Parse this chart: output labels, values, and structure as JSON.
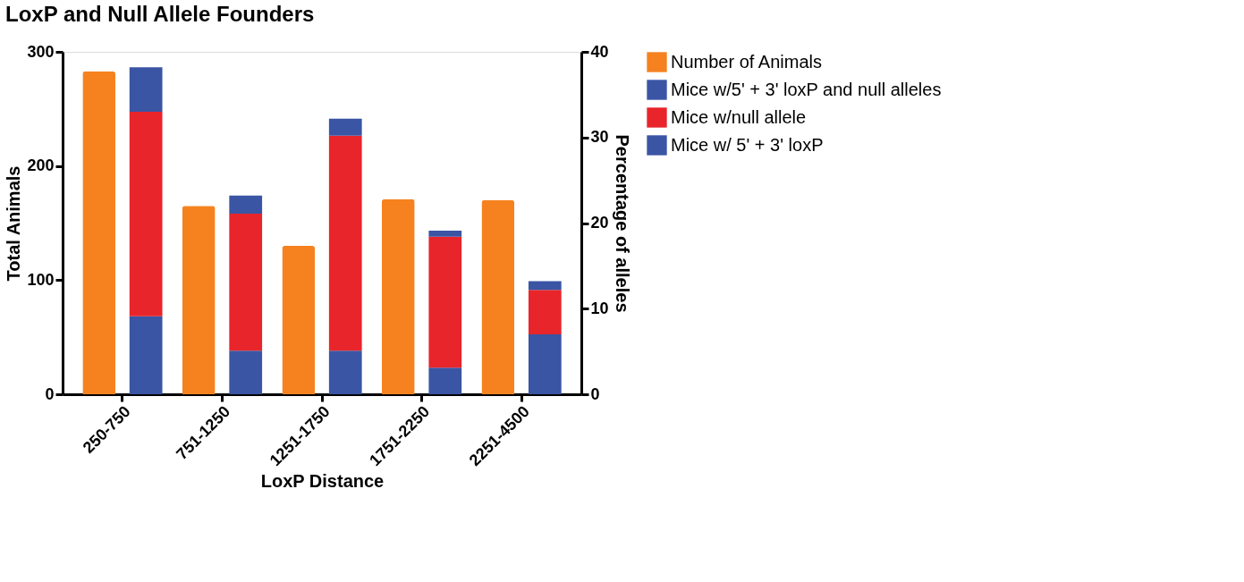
{
  "chart_data": {
    "type": "bar",
    "title": "LoxP and Null Allele Founders",
    "xlabel": "LoxP Distance",
    "ylabel": "Total Animals",
    "y2label": "Percentage of alleles",
    "categories": [
      "250-750",
      "751-1250",
      "1251-1750",
      "1751-2250",
      "2251-4500"
    ],
    "series": [
      {
        "name": "Number of Animals",
        "color": "#f5821f",
        "values": [
          283,
          165,
          130,
          171,
          170
        ]
      },
      {
        "name": "Mice w/ 5' + 3' loxP",
        "color": "#3a55a4",
        "axis": "y2",
        "values": [
          9.1,
          5.1,
          5.1,
          3.1,
          7.0
        ]
      },
      {
        "name": "Mice w/null allele",
        "color": "#e8252b",
        "axis": "y2",
        "values": [
          23.9,
          16.0,
          25.1,
          15.3,
          5.2
        ]
      },
      {
        "name": "Mice w/5' + 3' loxP and null alleles",
        "color": "#3a55a4",
        "axis": "y2",
        "values": [
          5.2,
          2.1,
          2.0,
          0.7,
          1.0
        ]
      }
    ],
    "stacked": true,
    "ylim": [
      0,
      300
    ],
    "yticks": [
      0,
      100,
      200,
      300
    ],
    "y2lim": [
      0,
      40
    ],
    "y2ticks": [
      0,
      10,
      20,
      30,
      40
    ],
    "grid": false,
    "legend": "right"
  }
}
